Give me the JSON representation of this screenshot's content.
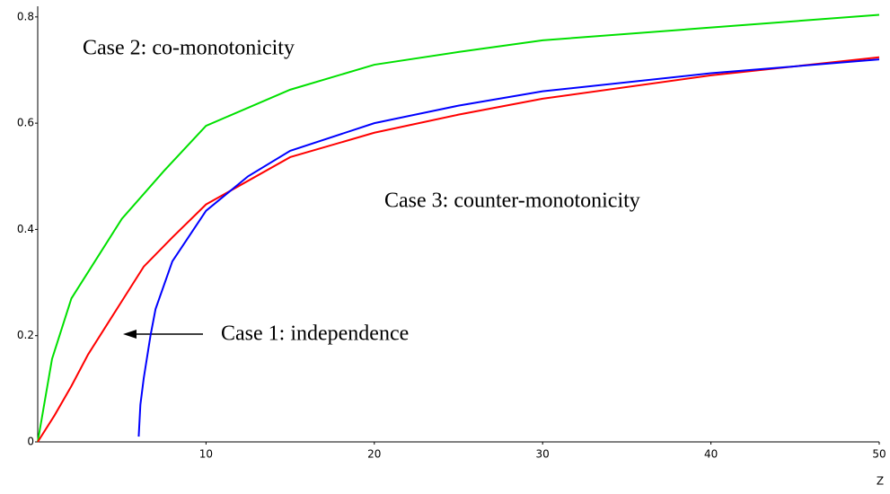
{
  "chart_data": {
    "type": "line",
    "xlabel": "Z",
    "annotations": [
      "Case 2: co-monotonicity",
      "Case 3: counter-monotonicity",
      "Case 1: independence"
    ],
    "series": [
      {
        "name": "Case 2: co-monotonicity",
        "color": "#00e000",
        "x": [
          0,
          0.85,
          2,
          5,
          7.5,
          10,
          15,
          20,
          25,
          30,
          40,
          50
        ],
        "values": [
          0,
          0.156,
          0.27,
          0.42,
          0.51,
          0.595,
          0.663,
          0.71,
          0.734,
          0.756,
          0.78,
          0.804
        ]
      },
      {
        "name": "Case 1: independence",
        "color": "#ff0000",
        "x": [
          0,
          1,
          2,
          3,
          4,
          5,
          6.3,
          8,
          10,
          15,
          20,
          25,
          30,
          40,
          50
        ],
        "values": [
          0,
          0.05,
          0.105,
          0.165,
          0.215,
          0.265,
          0.33,
          0.385,
          0.447,
          0.536,
          0.582,
          0.616,
          0.646,
          0.69,
          0.724
        ]
      },
      {
        "name": "Case 3: counter-monotonicity",
        "color": "#0000ff",
        "x": [
          6,
          6.1,
          6.3,
          6.7,
          7,
          8,
          10,
          12.5,
          15,
          20,
          25,
          30,
          40,
          50
        ],
        "values": [
          0.01,
          0.07,
          0.12,
          0.2,
          0.25,
          0.34,
          0.435,
          0.5,
          0.548,
          0.6,
          0.633,
          0.66,
          0.694,
          0.72
        ]
      }
    ],
    "xlim": [
      0,
      50
    ],
    "xticks": [
      10,
      20,
      30,
      40,
      50
    ],
    "ylim": [
      0,
      0.82
    ],
    "yticks": [
      0,
      0.2,
      0.4,
      0.6,
      0.8
    ],
    "grid": false
  }
}
